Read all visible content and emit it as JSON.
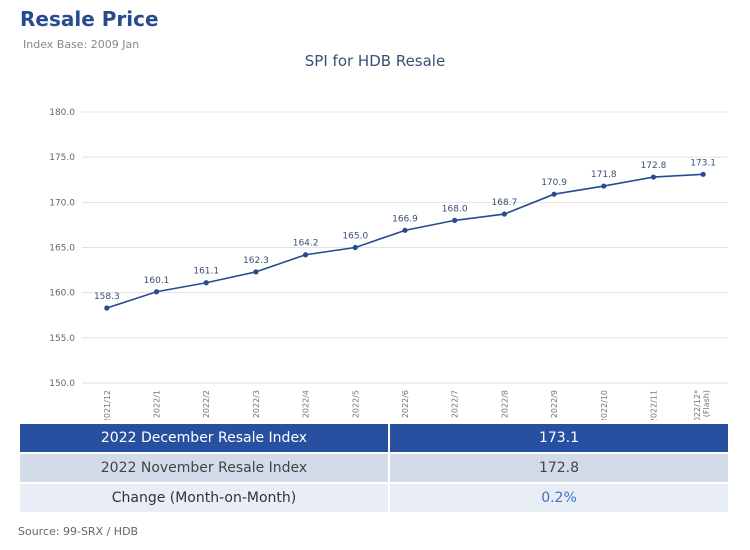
{
  "header": {
    "title": "Resale Price",
    "subtitle": "Index Base: 2009 Jan"
  },
  "chart_data": {
    "type": "line",
    "title": "SPI for HDB Resale",
    "categories": [
      "2021/12",
      "2022/1",
      "2022/2",
      "2022/3",
      "2022/4",
      "2022/5",
      "2022/6",
      "2022/7",
      "2022/8",
      "2022/9",
      "2022/10",
      "2022/11",
      "2022/12*|(Flash)"
    ],
    "values": [
      158.3,
      160.1,
      161.1,
      162.3,
      164.2,
      165.0,
      166.9,
      168.0,
      168.7,
      170.9,
      171.8,
      172.8,
      173.1
    ],
    "ylim": [
      150,
      180
    ],
    "yticks": [
      "150.0",
      "155.0",
      "160.0",
      "165.0",
      "170.0",
      "175.0",
      "180.0"
    ],
    "grid": true,
    "color": "#264c8f"
  },
  "table": {
    "rows": [
      {
        "label": "2022 December Resale Index",
        "value": "173.1"
      },
      {
        "label": "2022 November Resale Index",
        "value": "172.8"
      },
      {
        "label": "Change (Month-on-Month)",
        "value": "0.2%"
      }
    ]
  },
  "source": "Source: 99-SRX / HDB"
}
